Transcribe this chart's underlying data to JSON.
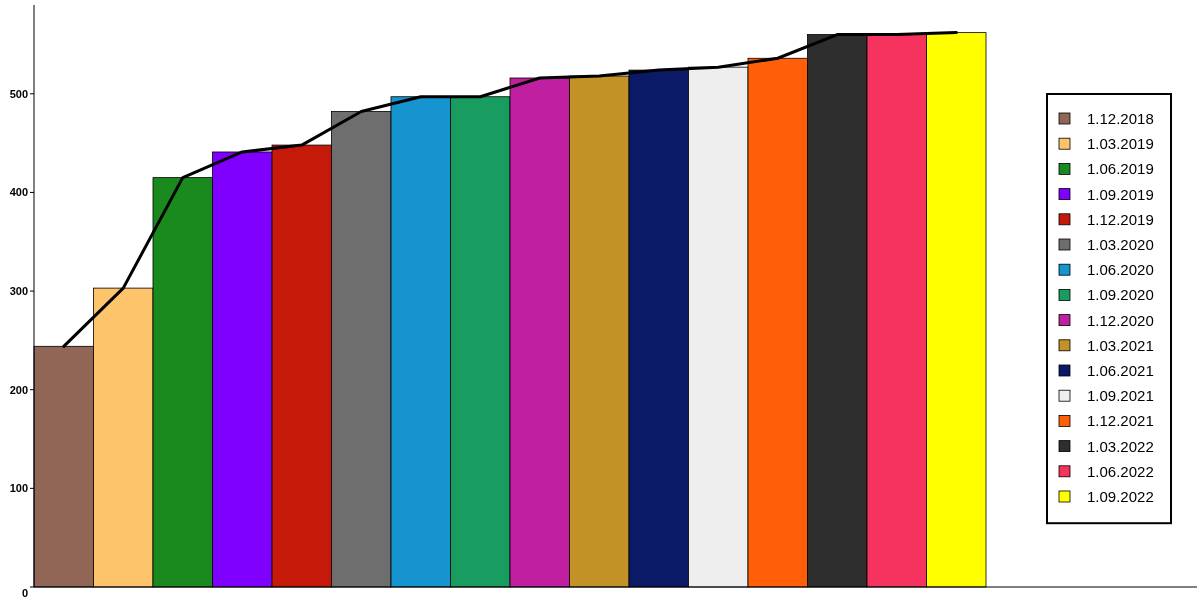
{
  "chart_data": {
    "type": "bar",
    "categories": [
      null,
      null,
      null,
      null,
      null,
      null,
      null,
      null,
      null,
      null,
      null,
      null,
      null,
      null,
      null,
      null
    ],
    "ylim": [
      0,
      590
    ],
    "yticks": [
      0,
      100,
      200,
      300,
      400,
      500
    ],
    "grid": false,
    "legend": "right",
    "series": [
      {
        "name": "1.12.2018",
        "color": "#926657",
        "values": [
          244,
          null,
          null,
          null,
          null,
          null,
          null,
          null,
          null,
          null,
          null,
          null,
          null,
          null,
          null,
          null
        ]
      },
      {
        "name": "1.03.2019",
        "color": "#fdc46c",
        "values": [
          null,
          303,
          null,
          null,
          null,
          null,
          null,
          null,
          null,
          null,
          null,
          null,
          null,
          null,
          null,
          null
        ]
      },
      {
        "name": "1.06.2019",
        "color": "#1a8a1e",
        "values": [
          null,
          null,
          415,
          null,
          null,
          null,
          null,
          null,
          null,
          null,
          null,
          null,
          null,
          null,
          null,
          null
        ]
      },
      {
        "name": "1.09.2019",
        "color": "#8000ff",
        "values": [
          null,
          null,
          null,
          441,
          null,
          null,
          null,
          null,
          null,
          null,
          null,
          null,
          null,
          null,
          null,
          null
        ]
      },
      {
        "name": "1.12.2019",
        "color": "#c5190a",
        "values": [
          null,
          null,
          null,
          null,
          448,
          null,
          null,
          null,
          null,
          null,
          null,
          null,
          null,
          null,
          null,
          null
        ]
      },
      {
        "name": "1.03.2020",
        "color": "#6e6e6e",
        "values": [
          null,
          null,
          null,
          null,
          null,
          482,
          null,
          null,
          null,
          null,
          null,
          null,
          null,
          null,
          null,
          null
        ]
      },
      {
        "name": "1.06.2020",
        "color": "#1594cf",
        "values": [
          null,
          null,
          null,
          null,
          null,
          null,
          497,
          null,
          null,
          null,
          null,
          null,
          null,
          null,
          null,
          null
        ]
      },
      {
        "name": "1.09.2020",
        "color": "#189c60",
        "values": [
          null,
          null,
          null,
          null,
          null,
          null,
          null,
          497,
          null,
          null,
          null,
          null,
          null,
          null,
          null,
          null
        ]
      },
      {
        "name": "1.12.2020",
        "color": "#c020a0",
        "values": [
          null,
          null,
          null,
          null,
          null,
          null,
          null,
          null,
          516,
          null,
          null,
          null,
          null,
          null,
          null,
          null
        ]
      },
      {
        "name": "1.03.2021",
        "color": "#c39227",
        "values": [
          null,
          null,
          null,
          null,
          null,
          null,
          null,
          null,
          null,
          518,
          null,
          null,
          null,
          null,
          null,
          null
        ]
      },
      {
        "name": "1.06.2021",
        "color": "#0b1a66",
        "values": [
          null,
          null,
          null,
          null,
          null,
          null,
          null,
          null,
          null,
          null,
          524,
          null,
          null,
          null,
          null,
          null
        ]
      },
      {
        "name": "1.09.2021",
        "color": "#eeeeee",
        "values": [
          null,
          null,
          null,
          null,
          null,
          null,
          null,
          null,
          null,
          null,
          null,
          527,
          null,
          null,
          null,
          null
        ]
      },
      {
        "name": "1.12.2021",
        "color": "#ff5f09",
        "values": [
          null,
          null,
          null,
          null,
          null,
          null,
          null,
          null,
          null,
          null,
          null,
          null,
          536,
          null,
          null,
          null
        ]
      },
      {
        "name": "1.03.2022",
        "color": "#2e2e2e",
        "values": [
          null,
          null,
          null,
          null,
          null,
          null,
          null,
          null,
          null,
          null,
          null,
          null,
          null,
          560,
          null,
          null
        ]
      },
      {
        "name": "1.06.2022",
        "color": "#f5335e",
        "values": [
          null,
          null,
          null,
          null,
          null,
          null,
          null,
          null,
          null,
          null,
          null,
          null,
          null,
          null,
          560,
          null
        ]
      },
      {
        "name": "1.09.2022",
        "color": "#ffff00",
        "values": [
          null,
          null,
          null,
          null,
          null,
          null,
          null,
          null,
          null,
          null,
          null,
          null,
          null,
          null,
          null,
          562
        ]
      },
      {
        "type": "line",
        "color": "#000000",
        "marker": "none",
        "line_style": "solid",
        "values": [
          244,
          303,
          415,
          441,
          448,
          482,
          497,
          497,
          516,
          518,
          524,
          527,
          536,
          560,
          560,
          562
        ]
      }
    ]
  }
}
